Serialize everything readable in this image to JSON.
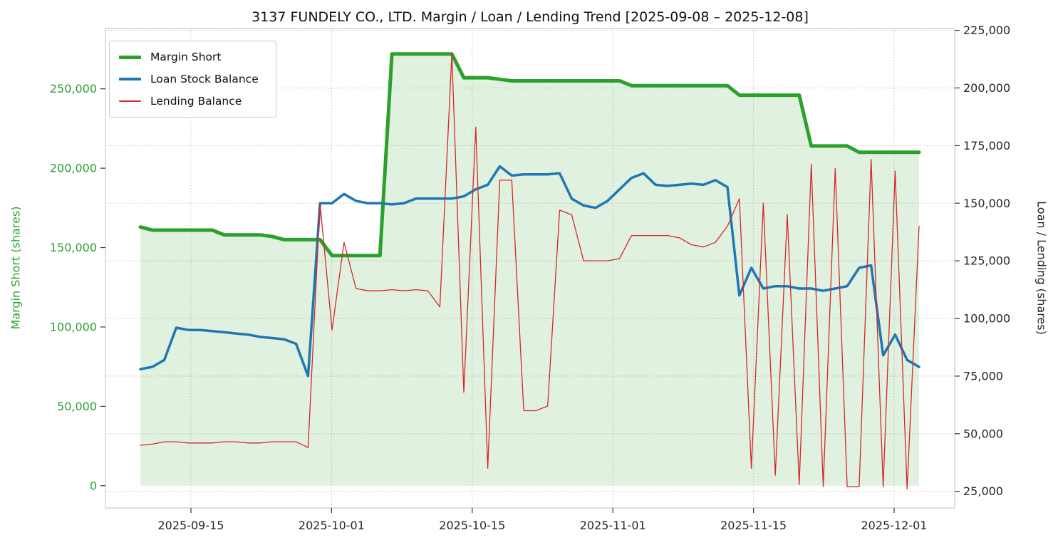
{
  "title": "3137 FUNDELY CO., LTD. Margin / Loan / Lending Trend [2025-09-08 – 2025-12-08]",
  "chart_data": {
    "type": "line",
    "grid": "dotted",
    "legend_position": "upper-left",
    "x": [
      "2025-09-08",
      "2025-09-09",
      "2025-09-10",
      "2025-09-11",
      "2025-09-12",
      "2025-09-15",
      "2025-09-16",
      "2025-09-17",
      "2025-09-18",
      "2025-09-19",
      "2025-09-22",
      "2025-09-23",
      "2025-09-24",
      "2025-09-25",
      "2025-09-26",
      "2025-09-29",
      "2025-09-30",
      "2025-10-01",
      "2025-10-02",
      "2025-10-03",
      "2025-10-06",
      "2025-10-07",
      "2025-10-08",
      "2025-10-09",
      "2025-10-10",
      "2025-10-13",
      "2025-10-14",
      "2025-10-15",
      "2025-10-16",
      "2025-10-17",
      "2025-10-20",
      "2025-10-21",
      "2025-10-22",
      "2025-10-23",
      "2025-10-24",
      "2025-10-27",
      "2025-10-28",
      "2025-10-29",
      "2025-10-30",
      "2025-10-31",
      "2025-11-03",
      "2025-11-04",
      "2025-11-05",
      "2025-11-06",
      "2025-11-07",
      "2025-11-10",
      "2025-11-11",
      "2025-11-12",
      "2025-11-13",
      "2025-11-14",
      "2025-11-17",
      "2025-11-18",
      "2025-11-19",
      "2025-11-20",
      "2025-11-21",
      "2025-11-24",
      "2025-11-25",
      "2025-11-26",
      "2025-11-27",
      "2025-11-28",
      "2025-12-01",
      "2025-12-02",
      "2025-12-03",
      "2025-12-04",
      "2025-12-05",
      "2025-12-08"
    ],
    "x_ticks": [
      "2025-09-15",
      "2025-10-01",
      "2025-10-15",
      "2025-11-01",
      "2025-11-15",
      "2025-12-01"
    ],
    "left_axis": {
      "label": "Margin Short (shares)",
      "color": "#2ca02c",
      "min": -14000,
      "max": 288000,
      "ticks": [
        0,
        50000,
        100000,
        150000,
        200000,
        250000
      ]
    },
    "right_axis": {
      "label": "Loan / Lending (shares)",
      "color": "#262626",
      "min": 17800,
      "max": 225800,
      "ticks": [
        25000,
        50000,
        75000,
        100000,
        125000,
        150000,
        175000,
        200000,
        225000
      ]
    },
    "series": [
      {
        "name": "Margin Short",
        "axis": "left",
        "color": "#2ca02c",
        "width": 5,
        "fill": true,
        "fill_color": "rgba(44,160,44,0.15)",
        "values": [
          163000,
          161000,
          161000,
          161000,
          161000,
          161000,
          161000,
          158000,
          158000,
          158000,
          158000,
          157000,
          155000,
          155000,
          155000,
          155000,
          145000,
          145000,
          145000,
          145000,
          145000,
          272000,
          272000,
          272000,
          272000,
          272000,
          272000,
          257000,
          257000,
          257000,
          256000,
          255000,
          255000,
          255000,
          255000,
          255000,
          255000,
          255000,
          255000,
          255000,
          255000,
          252000,
          252000,
          252000,
          252000,
          252000,
          252000,
          252000,
          252000,
          252000,
          246000,
          246000,
          246000,
          246000,
          246000,
          246000,
          214000,
          214000,
          214000,
          214000,
          210000,
          210000,
          210000,
          210000,
          210000,
          210000
        ]
      },
      {
        "name": "Loan Stock Balance",
        "axis": "right",
        "color": "#1f77b4",
        "width": 3.5,
        "fill": false,
        "values": [
          78000,
          79000,
          82000,
          96000,
          95000,
          95000,
          94500,
          94000,
          93500,
          93000,
          92000,
          91500,
          91000,
          89000,
          75000,
          150000,
          150000,
          154000,
          151000,
          150000,
          150000,
          149500,
          150000,
          152000,
          152000,
          152000,
          152000,
          153000,
          156000,
          158000,
          166000,
          162000,
          162500,
          162500,
          162500,
          163000,
          152000,
          149000,
          148000,
          151000,
          156000,
          161000,
          163000,
          158000,
          157500,
          158000,
          158500,
          158000,
          160000,
          157000,
          110000,
          122000,
          113000,
          114000,
          114000,
          113000,
          113000,
          112000,
          113000,
          114000,
          122000,
          123000,
          84000,
          93000,
          82000,
          79000
        ]
      },
      {
        "name": "Lending Balance",
        "axis": "right",
        "color": "#d62728",
        "width": 1.3,
        "fill": false,
        "values": [
          45000,
          45500,
          46500,
          46500,
          46000,
          46000,
          46000,
          46500,
          46500,
          46000,
          46000,
          46500,
          46500,
          46500,
          44000,
          150000,
          95000,
          133000,
          113000,
          112000,
          112000,
          112500,
          112000,
          112500,
          112000,
          105000,
          215000,
          68000,
          183000,
          35000,
          160000,
          160000,
          60000,
          60000,
          62000,
          147000,
          145000,
          125000,
          125000,
          125000,
          126000,
          136000,
          136000,
          136000,
          136000,
          135000,
          132000,
          131000,
          133000,
          140000,
          152000,
          35000,
          150000,
          32000,
          145000,
          28000,
          167000,
          27000,
          165000,
          27000,
          27000,
          169000,
          27000,
          164000,
          26000,
          140000
        ]
      }
    ]
  }
}
